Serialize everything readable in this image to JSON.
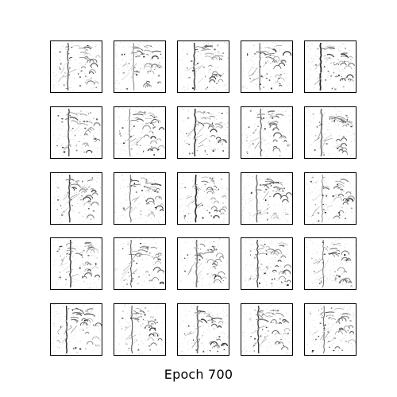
{
  "caption": "Epoch 700",
  "grid": {
    "rows": 5,
    "cols": 5
  },
  "colors": {
    "background": "#ffffff",
    "frame": "#000000",
    "ink_dark": "#111111",
    "ink_light": "#bdbdbd"
  }
}
